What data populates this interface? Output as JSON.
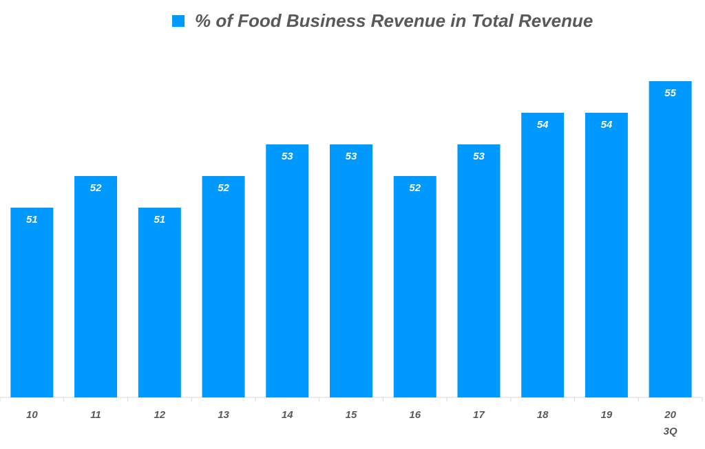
{
  "chart_data": {
    "type": "bar",
    "title": "",
    "legend": [
      {
        "label": "% of Food Business Revenue in Total Revenue",
        "color": "#0099FF"
      }
    ],
    "legend_position": "top",
    "categories": [
      [
        "10"
      ],
      [
        "11"
      ],
      [
        "12"
      ],
      [
        "13"
      ],
      [
        "14"
      ],
      [
        "15"
      ],
      [
        "16"
      ],
      [
        "17"
      ],
      [
        "18"
      ],
      [
        "19"
      ],
      [
        "20",
        "3Q"
      ]
    ],
    "series": [
      {
        "name": "% of Food Business Revenue in Total Revenue",
        "values": [
          51,
          52,
          51,
          52,
          53,
          53,
          52,
          53,
          54,
          54,
          55
        ]
      }
    ],
    "xlabel": "",
    "ylabel": "",
    "ylim": [
      45,
      56
    ],
    "grid": false,
    "bar_color": "#0099FF",
    "axis_color": "#D9D9D9"
  }
}
